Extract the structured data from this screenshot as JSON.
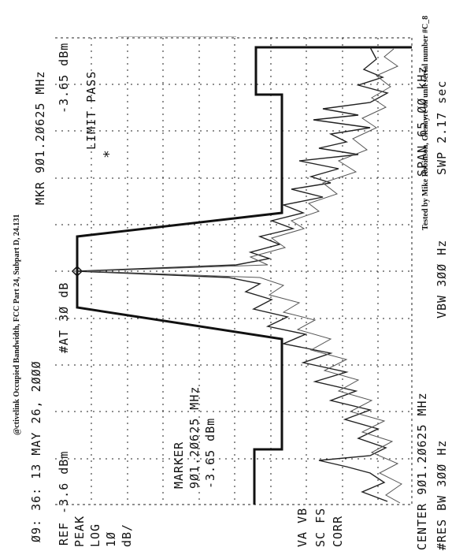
{
  "captions": {
    "left": "@ctivelink Occupied Bandwidth, FCC Part 24, Subpart D, 24.131",
    "right": "Tested by Mike Robinson, Glenayre on unit serial number #C_8"
  },
  "analyzer": {
    "timestamp": "Ø9: 36: 13  MAY 26,  2ØØØ",
    "ref": "REF -3.6 dBm",
    "attenuation": "#AT 3Ø dB",
    "marker_readout": "MKR 9Ø1.2Ø625 MHz",
    "marker_level": "-3.65 dBm",
    "limit_status": "LIMIT PASS",
    "limit_asterisk": "*",
    "left_panel": [
      "PEAK",
      "LOG",
      "1Ø",
      "dB/"
    ],
    "marker_title": "MARKER",
    "marker_freq": "9Ø1.2Ø625 MHz",
    "marker_amp": "-3.65 dBm",
    "left_lower": [
      "VA VB",
      "SC FS",
      "CORR"
    ],
    "center": "CENTER 9Ø1.2Ø625 MHz",
    "span": "SPAN 65.ØØ kHz",
    "res_bw": "#RES BW 3ØØ Hz",
    "vbw": "VBW 3ØØ Hz",
    "sweep": "SWP 2.17  sec"
  }
}
